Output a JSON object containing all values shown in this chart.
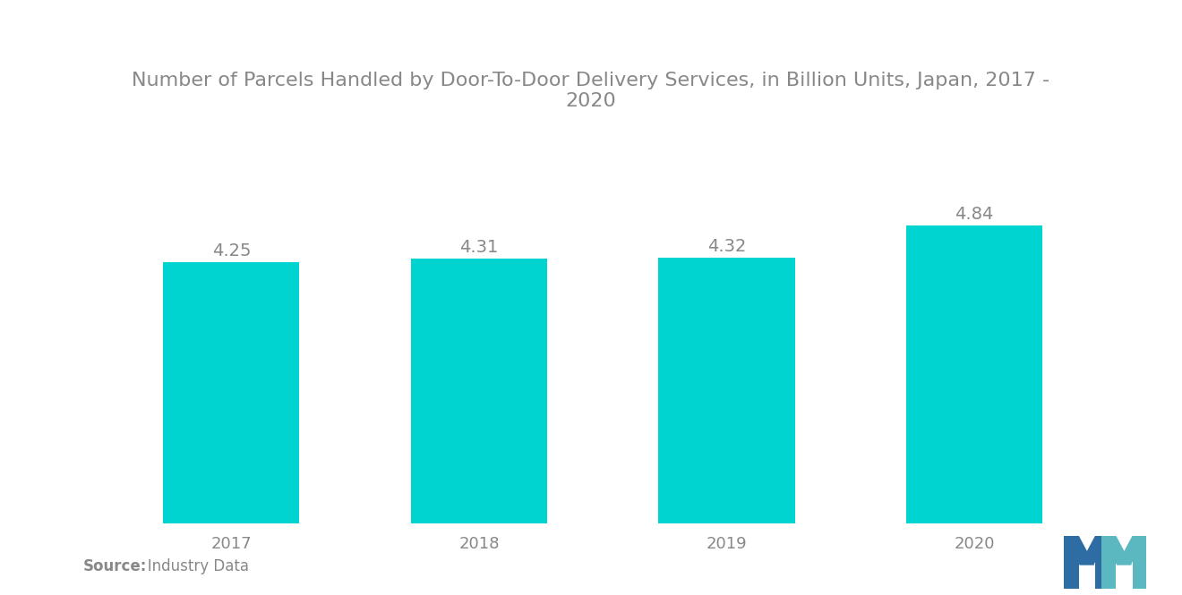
{
  "title": "Number of Parcels Handled by Door-To-Door Delivery Services, in Billion Units, Japan, 2017 -\n2020",
  "categories": [
    "2017",
    "2018",
    "2019",
    "2020"
  ],
  "values": [
    4.25,
    4.31,
    4.32,
    4.84
  ],
  "bar_color": "#00D4D0",
  "background_color": "#ffffff",
  "value_label_color": "#888888",
  "xlabel_color": "#888888",
  "title_color": "#888888",
  "source_bold": "Source:",
  "source_rest": "   Industry Data",
  "ylim": [
    0,
    5.8
  ],
  "title_fontsize": 16,
  "label_fontsize": 14,
  "tick_fontsize": 13,
  "source_fontsize": 12,
  "bar_width": 0.55
}
